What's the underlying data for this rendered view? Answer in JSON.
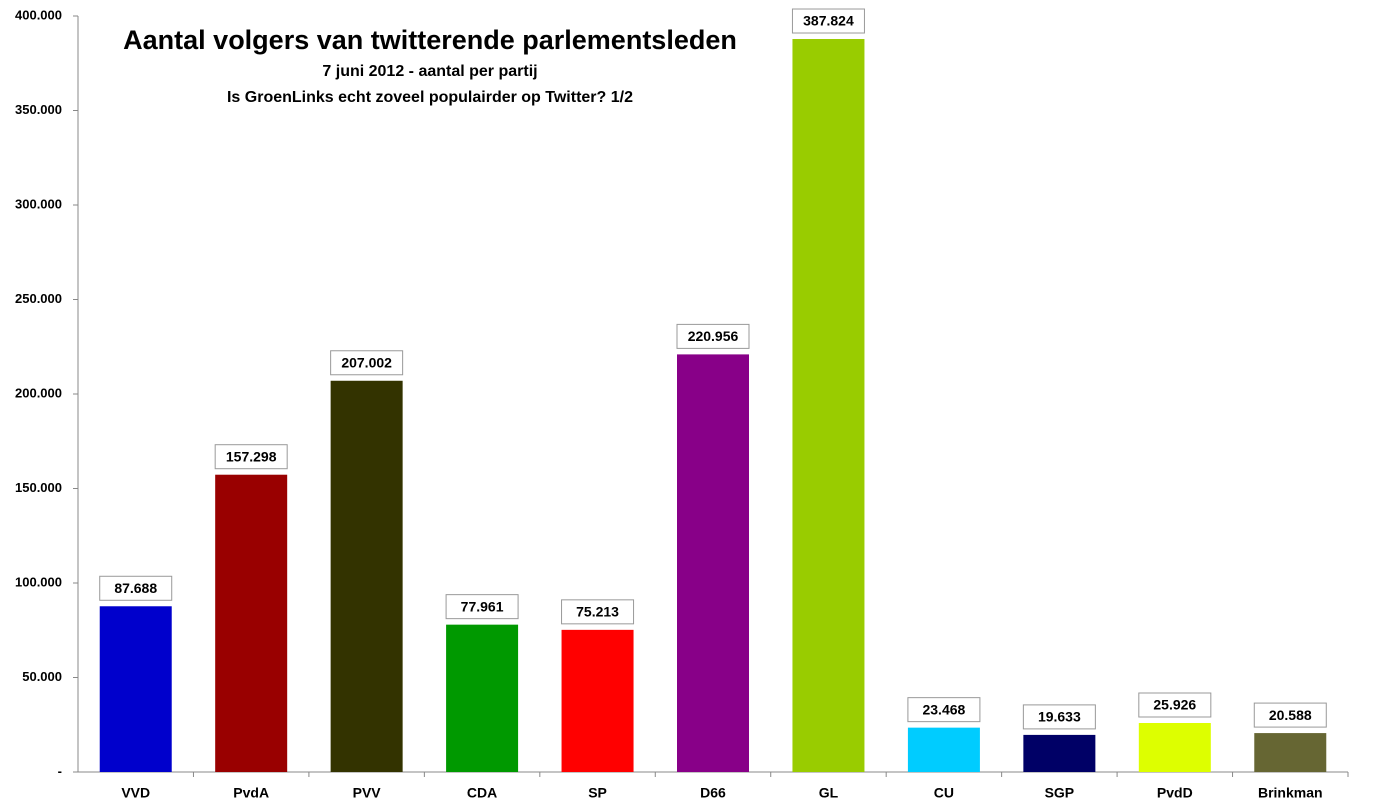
{
  "chart_data": {
    "type": "bar",
    "title": "Aantal volgers van twitterende parlementsleden",
    "subtitle": [
      "7 juni 2012 - aantal per partij",
      "Is GroenLinks echt zoveel populairder op Twitter? 1/2"
    ],
    "categories": [
      "VVD",
      "PvdA",
      "PVV",
      "CDA",
      "SP",
      "D66",
      "GL",
      "CU",
      "SGP",
      "PvdD",
      "Brinkman"
    ],
    "values": [
      87688,
      157298,
      207002,
      77961,
      75213,
      220956,
      387824,
      23468,
      19633,
      25926,
      20588
    ],
    "value_labels": [
      "87.688",
      "157.298",
      "207.002",
      "77.961",
      "75.213",
      "220.956",
      "387.824",
      "23.468",
      "19.633",
      "25.926",
      "20.588"
    ],
    "colors": [
      "#0000cc",
      "#990000",
      "#333300",
      "#009900",
      "#ff0000",
      "#880088",
      "#99cc00",
      "#00ccff",
      "#000066",
      "#ddff00",
      "#666633"
    ],
    "ylim": [
      0,
      400000
    ],
    "yticks": [
      {
        "value": 0,
        "label": "-"
      },
      {
        "value": 50000,
        "label": "50.000"
      },
      {
        "value": 100000,
        "label": "100.000"
      },
      {
        "value": 150000,
        "label": "150.000"
      },
      {
        "value": 200000,
        "label": "200.000"
      },
      {
        "value": 250000,
        "label": "250.000"
      },
      {
        "value": 300000,
        "label": "300.000"
      },
      {
        "value": 350000,
        "label": "350.000"
      },
      {
        "value": 400000,
        "label": "400.000"
      }
    ],
    "grid": false
  }
}
